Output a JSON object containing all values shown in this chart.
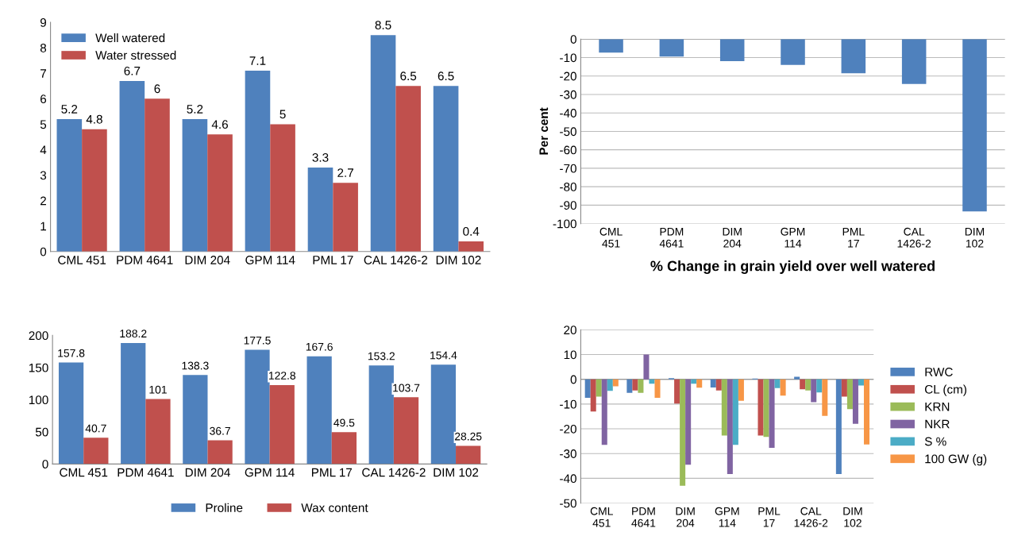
{
  "chart_data": [
    {
      "type": "bar",
      "categories": [
        "CML 451",
        "PDM 4641",
        "DIM 204",
        "GPM 114",
        "PML 17",
        "CAL 1426-2",
        "DIM 102"
      ],
      "series": [
        {
          "name": "Well watered",
          "color": "#4f81bd",
          "values": [
            5.2,
            6.7,
            5.2,
            7.1,
            3.3,
            8.5,
            6.5
          ]
        },
        {
          "name": "Water stressed",
          "color": "#c0504d",
          "values": [
            4.8,
            6,
            4.6,
            5,
            2.7,
            6.5,
            0.4
          ]
        }
      ],
      "ylim": [
        0,
        9
      ],
      "yticks": [
        0,
        1,
        2,
        3,
        4,
        5,
        6,
        7,
        8,
        9
      ],
      "data_labels": true,
      "legend": "top left",
      "grid": false
    },
    {
      "type": "bar",
      "categories": [
        "CML 451",
        "PDM 4641",
        "DIM 204",
        "GPM 114",
        "PML 17",
        "CAL 1426-2",
        "DIM 102"
      ],
      "series": [
        {
          "color": "#4f81bd",
          "values": [
            -7.3,
            -9.5,
            -11.9,
            -14,
            -18.5,
            -24.3,
            -93.4
          ]
        }
      ],
      "xlabel": "% Change in grain yield over well watered",
      "ylabel": "Per cent",
      "ylim": [
        -100,
        0
      ],
      "yticks": [
        -100,
        -90,
        -80,
        -70,
        -60,
        -50,
        -40,
        -30,
        -20,
        -10,
        0
      ],
      "grid": "y"
    },
    {
      "type": "bar",
      "categories": [
        "CML 451",
        "PDM 4641",
        "DIM 204",
        "GPM 114",
        "PML 17",
        "CAL 1426-2",
        "DIM 102"
      ],
      "series": [
        {
          "name": "Proline",
          "color": "#4f81bd",
          "values": [
            157.8,
            188.2,
            138.3,
            177.5,
            167.6,
            153.2,
            154.4
          ],
          "value_labels": [
            "157.8",
            "188.2",
            "138.3",
            "177.5",
            "167.6",
            "153.2",
            "154.4"
          ]
        },
        {
          "name": "Wax content",
          "color": "#c0504d",
          "values": [
            40.7,
            101,
            36.7,
            122.8,
            49.5,
            103.7,
            28.25
          ],
          "value_labels": [
            "40.7",
            "101",
            "36.7",
            "122.8",
            "49.5",
            "103.7",
            "28.25"
          ]
        }
      ],
      "ylim": [
        0,
        200
      ],
      "yticks": [
        0,
        50,
        100,
        150,
        200
      ],
      "legend": "bottom",
      "grid": false
    },
    {
      "type": "bar",
      "categories": [
        "CML 451",
        "PDM 4641",
        "DIM 204",
        "GPM 114",
        "PML 17",
        "CAL 1426-2",
        "DIM 102"
      ],
      "series": [
        {
          "name": "RWC",
          "color": "#4f81bd",
          "values": [
            -7.5,
            -5.5,
            0.5,
            -3.3,
            0.3,
            1,
            -38.3
          ]
        },
        {
          "name": "CL (cm)",
          "color": "#c0504d",
          "values": [
            -13,
            -4.5,
            -9.8,
            -4.5,
            -22.7,
            -4,
            -7
          ]
        },
        {
          "name": "KRN",
          "color": "#9bbb59",
          "values": [
            -7,
            -5.5,
            -43,
            -22.7,
            -23.3,
            -4.5,
            -12
          ]
        },
        {
          "name": "NKR",
          "color": "#8064a2",
          "values": [
            -26.5,
            10,
            -34.5,
            -38.3,
            -27.7,
            -9.2,
            -18
          ]
        },
        {
          "name": "S %",
          "color": "#4bacc6",
          "values": [
            -4.7,
            -1.8,
            -1.8,
            -26.5,
            -3.5,
            -5.3,
            -2.5
          ]
        },
        {
          "name": "100 GW (g)",
          "color": "#f79646",
          "values": [
            -2.8,
            -7.5,
            -3.4,
            -8.7,
            -6.6,
            -14.8,
            -26.3
          ]
        }
      ],
      "ylim": [
        -50,
        20
      ],
      "yticks": [
        -50,
        -40,
        -30,
        -20,
        -10,
        0,
        10,
        20
      ],
      "legend": "right",
      "grid": "y"
    }
  ]
}
